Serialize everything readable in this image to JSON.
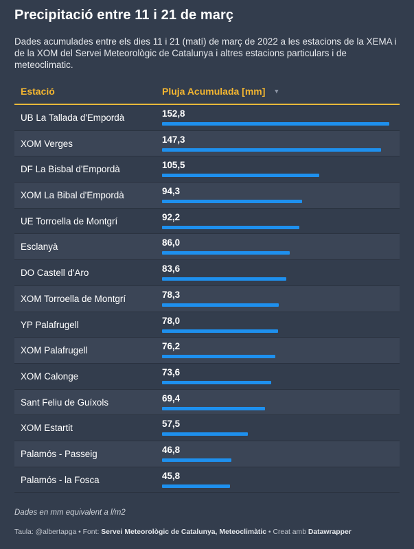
{
  "title": "Precipitació entre 11 i 21 de març",
  "subtitle": "Dades acumulades entre els dies 11 i 21 (matí) de març de 2022 a les estacions de la XEMA i de la XOM del Servei Meteorològic de Catalunya i altres estacions particulars i de meteoclimatic.",
  "table_header": {
    "station": "Estació",
    "rain": "Pluja Acumulada [mm]",
    "sort_icon": "▼"
  },
  "colors": {
    "background": "#333d4d",
    "header_accent": "#f2b531",
    "bar": "#1e90ee"
  },
  "chart_data": {
    "type": "bar",
    "orientation": "horizontal",
    "xlim": [
      0,
      152.8
    ],
    "categories": [
      "UB La Tallada d'Empordà",
      "XOM Verges",
      "DF La Bisbal d'Empordà",
      "XOM La Bibal d'Empordà",
      "UE Torroella de Montgrí",
      "Esclanyà",
      "DO Castell d'Aro",
      "XOM Torroella de Montgrí",
      "YP Palafrugell",
      "XOM Palafrugell",
      "XOM Calonge",
      "Sant Feliu de Guíxols",
      "XOM Estartit",
      "Palamós - Passeig",
      "Palamós - la Fosca"
    ],
    "values": [
      152.8,
      147.3,
      105.5,
      94.3,
      92.2,
      86.0,
      83.6,
      78.3,
      78.0,
      76.2,
      73.6,
      69.4,
      57.5,
      46.8,
      45.8
    ],
    "labels": [
      "152,8",
      "147,3",
      "105,5",
      "94,3",
      "92,2",
      "86,0",
      "83,6",
      "78,3",
      "78,0",
      "76,2",
      "73,6",
      "69,4",
      "57,5",
      "46,8",
      "45,8"
    ]
  },
  "note": "Dades en mm equivalent a l/m2",
  "footer": {
    "prefix": "Taula: @albertapga • Font: ",
    "source": "Servei Meteorològic de Catalunya, Meteoclimàtic",
    "middle": " • Creat amb ",
    "tool": "Datawrapper"
  }
}
